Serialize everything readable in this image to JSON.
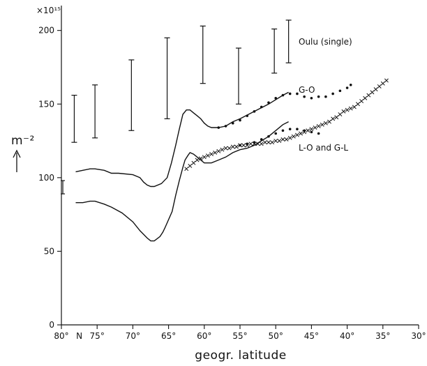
{
  "chart_data": {
    "type": "line",
    "xlabel": "geogr. latitude",
    "ylabel": "m⁻²",
    "y_multiplier": "×10¹⁵",
    "xlim": [
      80,
      30
    ],
    "ylim": [
      0,
      215
    ],
    "x_direction": "reversed (latitude decreasing to the right)",
    "x_ticks": [
      {
        "value": 80,
        "label": "80°"
      },
      {
        "value": 77.5,
        "label": "N"
      },
      {
        "value": 75,
        "label": "75°"
      },
      {
        "value": 70,
        "label": "70°"
      },
      {
        "value": 65,
        "label": "65°"
      },
      {
        "value": 60,
        "label": "60°"
      },
      {
        "value": 55,
        "label": "55°"
      },
      {
        "value": 50,
        "label": "50°"
      },
      {
        "value": 45,
        "label": "45°"
      },
      {
        "value": 40,
        "label": "40°"
      },
      {
        "value": 35,
        "label": "35°"
      },
      {
        "value": 30,
        "label": "30°"
      }
    ],
    "y_ticks": [
      {
        "value": 0,
        "label": "0"
      },
      {
        "value": 50,
        "label": "50"
      },
      {
        "value": 100,
        "label": "100"
      },
      {
        "value": 150,
        "label": "150"
      },
      {
        "value": 200,
        "label": "200"
      }
    ],
    "grid": false,
    "annotations": {
      "oulu": "Oulu (single)",
      "go": "G-O",
      "lo_gl": "L-O and G-L"
    },
    "error_bars": {
      "name": "Oulu (single)",
      "bars": [
        {
          "x": 78.2,
          "low": 124,
          "high": 156
        },
        {
          "x": 75.3,
          "low": 127,
          "high": 163
        },
        {
          "x": 70.2,
          "low": 132,
          "high": 180
        },
        {
          "x": 65.2,
          "low": 140,
          "high": 195
        },
        {
          "x": 60.2,
          "low": 164,
          "high": 203
        },
        {
          "x": 55.2,
          "low": 150,
          "high": 188
        },
        {
          "x": 50.2,
          "low": 171,
          "high": 201
        },
        {
          "x": 48.2,
          "low": 178,
          "high": 207
        }
      ]
    },
    "example_error_bar": {
      "x": 79.8,
      "low": 89,
      "high": 98
    },
    "series": [
      {
        "style": "solid",
        "x": [
          78,
          77,
          76,
          75.3,
          74,
          73,
          72,
          70,
          69,
          68.5,
          68,
          67.5,
          67,
          66,
          65.2,
          64.6,
          64,
          63.5,
          63,
          62.5,
          62,
          61.5,
          61,
          60.5,
          60,
          59.5,
          59,
          58.5,
          58,
          57,
          56,
          55,
          53,
          51,
          49,
          48.2
        ],
        "y": [
          104,
          105,
          106,
          106,
          105,
          103,
          103,
          102,
          100,
          97,
          95,
          94,
          94,
          96,
          100,
          110,
          122,
          133,
          143,
          146,
          146,
          144,
          142,
          140,
          137,
          135,
          134,
          134,
          134,
          135,
          138,
          140,
          145,
          150,
          156,
          158
        ]
      },
      {
        "style": "solid",
        "x": [
          78,
          77,
          76,
          75.3,
          74,
          73,
          71.5,
          70,
          69,
          68,
          67.5,
          67,
          66.2,
          65.8,
          65.5,
          64.5,
          64,
          63.5,
          63,
          62.7,
          62.3,
          62,
          61.5,
          61,
          60.5,
          60,
          59,
          58,
          57,
          56,
          55,
          54,
          53,
          52,
          51,
          50,
          49,
          48.2
        ],
        "y": [
          83,
          83,
          84,
          84,
          82,
          80,
          76,
          70,
          64,
          59,
          57,
          57,
          60,
          63,
          66,
          77,
          88,
          98,
          107,
          112,
          115,
          117,
          116,
          114,
          112,
          110,
          110,
          112,
          114,
          117,
          119,
          120,
          122,
          125,
          128,
          132,
          136,
          138
        ]
      },
      {
        "style": "dots",
        "x": [
          58,
          57,
          56,
          55,
          54,
          53,
          52,
          51,
          50,
          49,
          48,
          47,
          46,
          45,
          44,
          43,
          42,
          41,
          40,
          39.5
        ],
        "y": [
          134,
          135,
          137,
          139,
          142,
          145,
          148,
          151,
          154,
          156,
          157,
          157,
          155,
          154,
          155,
          155,
          157,
          159,
          161,
          163
        ]
      },
      {
        "style": "dots",
        "x": [
          55,
          54,
          53,
          52,
          51,
          50,
          49,
          48,
          47,
          46,
          45,
          44
        ],
        "y": [
          122,
          123,
          124,
          126,
          128,
          130,
          132,
          133,
          133,
          132,
          131,
          130
        ]
      },
      {
        "style": "crosses",
        "x": [
          62.5,
          62,
          61.5,
          61,
          60.5,
          60,
          59.5,
          59,
          58.5,
          58,
          57.5,
          57,
          56.5,
          56,
          55.5,
          55,
          54.5,
          54,
          53.5,
          53,
          52.5,
          52,
          51.5,
          51,
          50.5,
          50,
          49.5,
          49,
          48.5,
          48,
          47.5,
          47,
          46.5,
          46,
          45.5,
          45,
          44.5,
          44,
          43.5,
          43,
          42.5,
          42,
          41.5,
          41,
          40.5,
          40,
          39.5,
          39,
          38.5,
          38,
          37.5,
          37,
          36.5,
          36,
          35.5,
          35,
          34.5
        ],
        "y": [
          106,
          108,
          110,
          112,
          113,
          114,
          115,
          116,
          117,
          118,
          119,
          120,
          120,
          121,
          121,
          122,
          122,
          122,
          123,
          123,
          123,
          123,
          124,
          124,
          124,
          125,
          125,
          126,
          126,
          127,
          128,
          129,
          130,
          131,
          132,
          133,
          134,
          135,
          136,
          137,
          138,
          140,
          141,
          143,
          145,
          146,
          147,
          148,
          150,
          152,
          154,
          156,
          158,
          160,
          162,
          164,
          166
        ]
      }
    ]
  }
}
